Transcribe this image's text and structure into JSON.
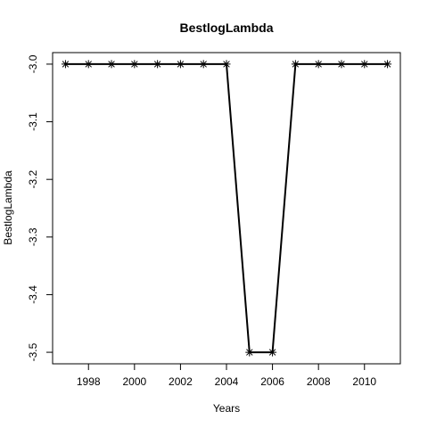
{
  "chart_data": {
    "type": "line",
    "title": "BestlogLambda",
    "xlabel": "Years",
    "ylabel": "BestlogLambda",
    "x": [
      1997,
      1998,
      1999,
      2000,
      2001,
      2002,
      2003,
      2004,
      2005,
      2006,
      2007,
      2008,
      2009,
      2010,
      2011
    ],
    "y": [
      -3.0,
      -3.0,
      -3.0,
      -3.0,
      -3.0,
      -3.0,
      -3.0,
      -3.0,
      -3.5,
      -3.5,
      -3.0,
      -3.0,
      -3.0,
      -3.0,
      -3.0
    ],
    "x_ticks": [
      1998,
      2000,
      2002,
      2004,
      2006,
      2008,
      2010
    ],
    "x_tick_labels": [
      "1998",
      "2000",
      "2002",
      "2004",
      "2006",
      "2008",
      "2010"
    ],
    "y_ticks": [
      -3.0,
      -3.1,
      -3.2,
      -3.3,
      -3.4,
      -3.5
    ],
    "y_tick_labels": [
      "-3.0",
      "-3.1",
      "-3.2",
      "-3.3",
      "-3.4",
      "-3.5"
    ],
    "xlim": [
      1996.44,
      2011.56
    ],
    "ylim": [
      -3.52,
      -2.98
    ],
    "marker": "asterisk",
    "line_color": "#000000",
    "grid": false
  }
}
